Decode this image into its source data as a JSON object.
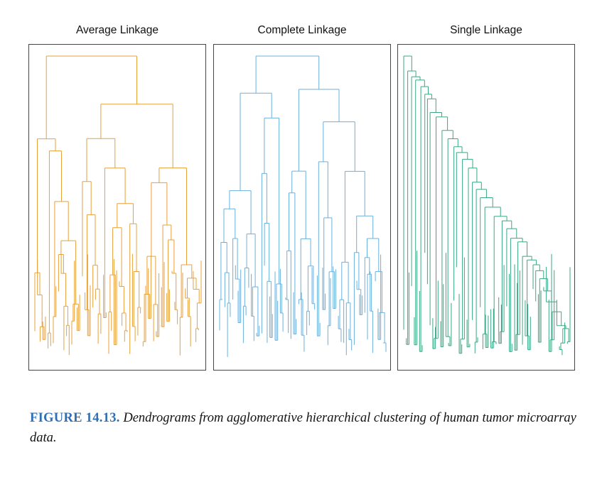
{
  "panels": [
    {
      "id": "avg",
      "title": "Average Linkage",
      "color": "#e8a13a",
      "seed": 11,
      "shape": "average"
    },
    {
      "id": "comp",
      "title": "Complete Linkage",
      "color": "#6ab0de",
      "seed": 29,
      "shape": "complete"
    },
    {
      "id": "single",
      "title": "Single Linkage",
      "color": "#3aa886",
      "seed": 47,
      "shape": "single"
    }
  ],
  "caption": {
    "label": "FIGURE 14.13.",
    "text": "Dendrograms from agglomerative hierarchical clustering of human tumor microarray data."
  }
}
